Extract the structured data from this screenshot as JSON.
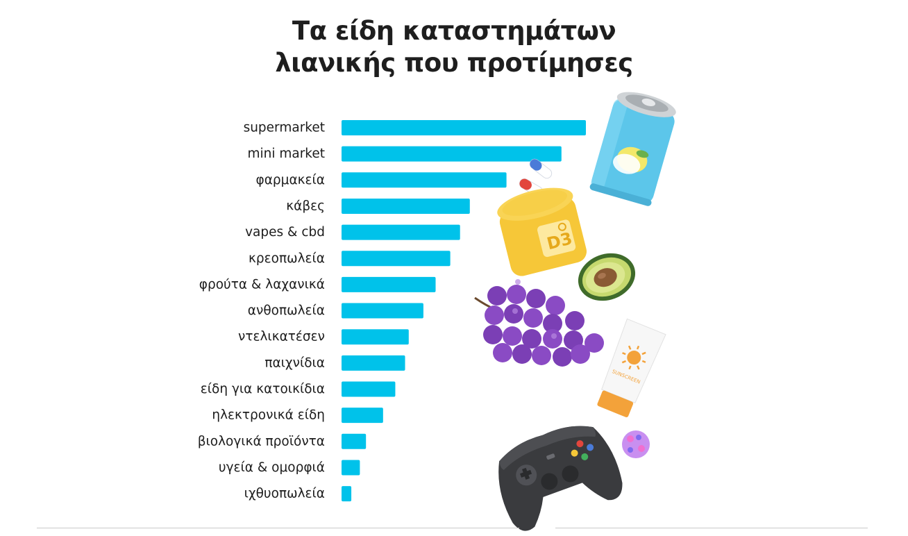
{
  "colors": {
    "bar": "#00c2ea",
    "text": "#1c1c1c",
    "divider": "#c9c9c9"
  },
  "illustrations": [
    "soda-can-icon",
    "pill-capsule-icon",
    "vitamin-d3-jar-icon",
    "avocado-icon",
    "grapes-icon",
    "sunscreen-tube-icon",
    "game-controller-icon",
    "pet-ball-icon"
  ],
  "decor_text": {
    "jar_label": "D3",
    "sunscreen_label": "SUNSCREEN"
  },
  "chart_data": {
    "type": "bar",
    "orientation": "horizontal",
    "title": "Τα είδη καταστημάτων λιανικής που προτίμησες",
    "title_lines": [
      "Τα είδη καταστημάτων",
      "λιανικής που προτίμησες"
    ],
    "categories": [
      "supermarket",
      "mini market",
      "φαρμακεία",
      "κάβες",
      "vapes & cbd",
      "κρεοπωλεία",
      "φρούτα & λαχανικά",
      "ανθοπωλεία",
      "ντελικατέσεν",
      "παιχνίδια",
      "είδη για κατοικίδια",
      "ηλεκτρονικά είδη",
      "βιολογικά προϊόντα",
      "υγεία & ομορφιά",
      "ιχθυοπωλεία"
    ],
    "values": [
      100,
      90,
      67.5,
      52.5,
      48.5,
      44.5,
      38.5,
      33.5,
      27.5,
      26,
      22,
      17,
      10,
      7.5,
      4
    ],
    "xlabel": "",
    "ylabel": "",
    "xlim": [
      0,
      100
    ],
    "grid": false,
    "legend": false,
    "value_labels": false
  }
}
